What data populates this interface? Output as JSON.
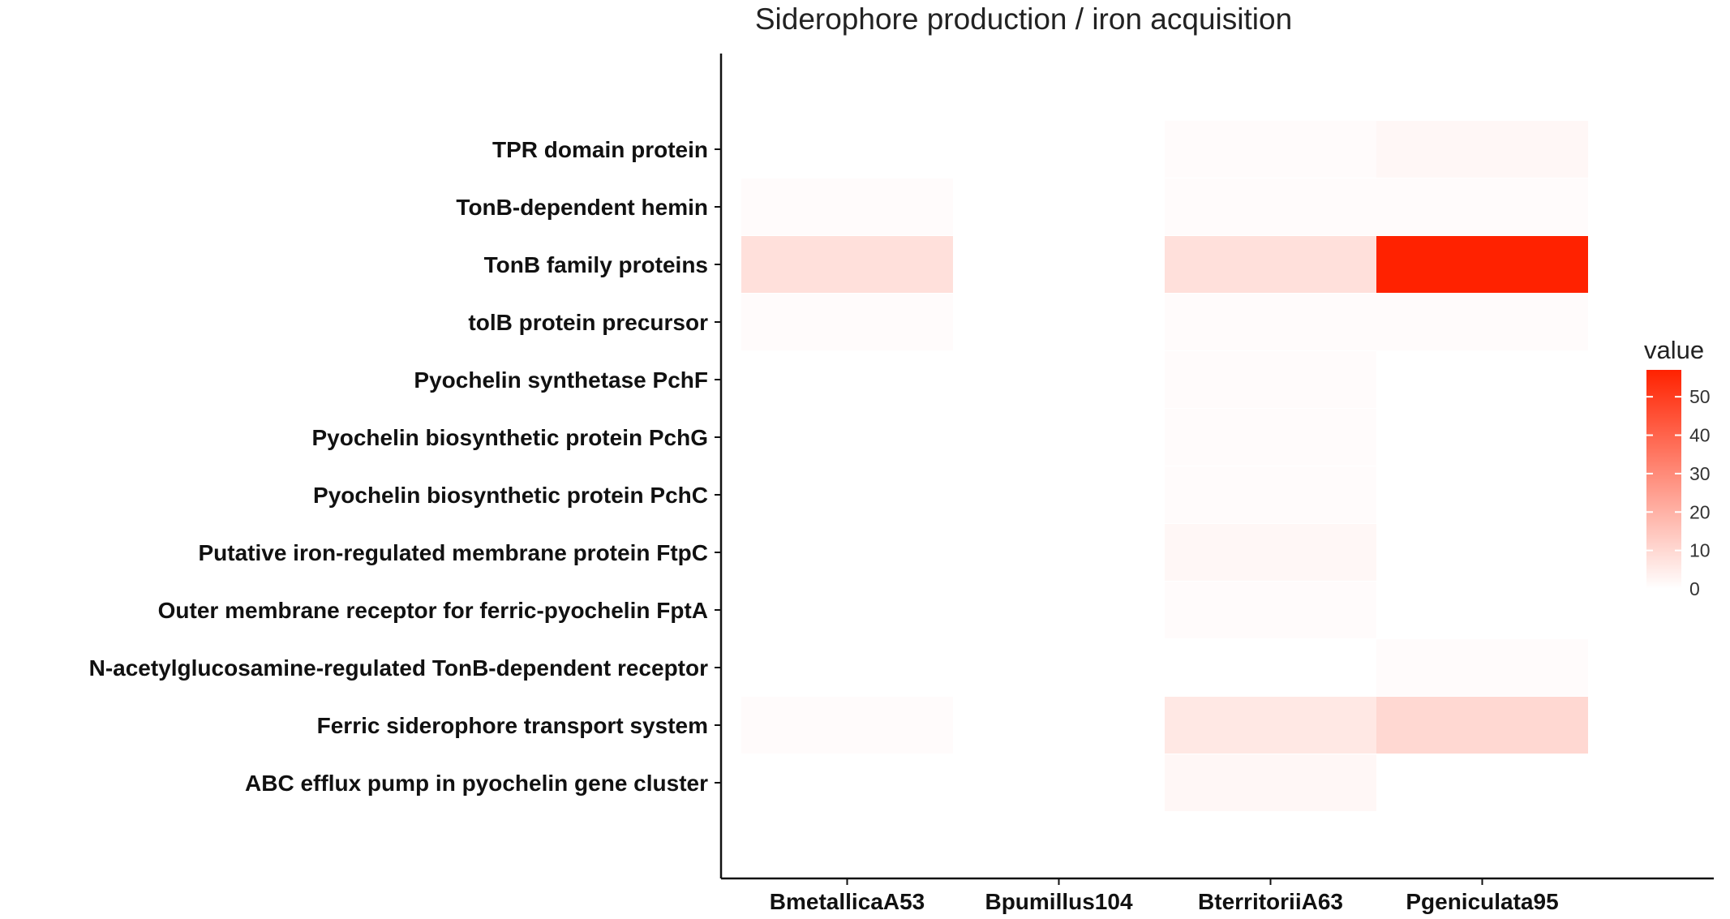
{
  "chart_data": {
    "type": "heatmap",
    "title": "Siderophore production / iron acquisition",
    "xlabel": "",
    "ylabel": "",
    "x_categories": [
      "BmetallicaA53",
      "Bpumillus104",
      "BterritoriiA63",
      "Pgeniculata95"
    ],
    "y_categories": [
      "TPR domain protein",
      "TonB-dependent hemin ",
      "TonB family proteins",
      "tolB protein precursor",
      "Pyochelin synthetase PchF",
      "Pyochelin biosynthetic protein PchG",
      "Pyochelin biosynthetic protein PchC",
      "Putative iron-regulated membrane protein FtpC",
      "Outer membrane receptor for ferric-pyochelin FptA",
      "N-acetylglucosamine-regulated TonB-dependent receptor",
      "Ferric siderophore transport system",
      "ABC efflux pump in pyochelin gene cluster"
    ],
    "values": [
      [
        null,
        null,
        1,
        2
      ],
      [
        1,
        null,
        1,
        1
      ],
      [
        8,
        null,
        8,
        57
      ],
      [
        1,
        null,
        1,
        1
      ],
      [
        null,
        null,
        1,
        null
      ],
      [
        null,
        null,
        1,
        null
      ],
      [
        null,
        null,
        1,
        null
      ],
      [
        null,
        null,
        2,
        null
      ],
      [
        null,
        null,
        1,
        null
      ],
      [
        null,
        null,
        null,
        1
      ],
      [
        1,
        null,
        6,
        10
      ],
      [
        null,
        null,
        2,
        null
      ]
    ],
    "legend": {
      "title": "value",
      "ticks": [
        0,
        10,
        20,
        30,
        40,
        50
      ],
      "range": [
        0,
        57
      ],
      "low_color": "#ffffff",
      "high_color": "#ff2200",
      "placement": "right"
    }
  }
}
